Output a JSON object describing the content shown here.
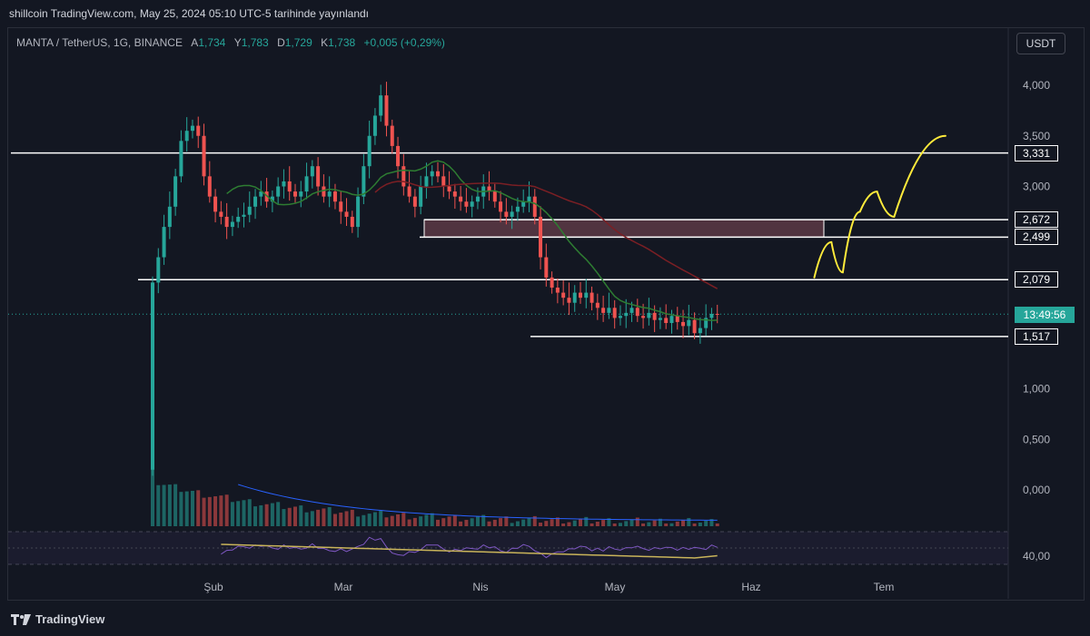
{
  "header": {
    "publish_line": "shillcoin TradingView.com, May 25, 2024 05:10 UTC-5 tarihinde yayınlandı"
  },
  "legend": {
    "symbol": "MANTA / TetherUS, 1G, BINANCE",
    "open_key": "A",
    "open": "1,734",
    "high_key": "Y",
    "high": "1,783",
    "low_key": "D",
    "low": "1,729",
    "close_key": "K",
    "close": "1,738",
    "change": "+0,005 (+0,29%)"
  },
  "currency_button": "USDT",
  "countdown": "13:49:56",
  "footer": {
    "brand": "TradingView"
  },
  "colors": {
    "background": "#131722",
    "up": "#26a69a",
    "down": "#ef5350",
    "ma_fast": "#2e7d32",
    "ma_slow": "#7b1f24",
    "level": "#ffffff",
    "projection": "#ffeb3b",
    "rsi": "#7e57c2",
    "rsi_ma": "#c9b45a",
    "zone": "#5d3a45"
  },
  "chart_data": {
    "type": "candlestick",
    "symbol": "MANTA/USDT",
    "timeframe": "1G",
    "y_ticks": [
      {
        "value": 4.0,
        "label": "4,000"
      },
      {
        "value": 3.5,
        "label": "3,500"
      },
      {
        "value": 3.0,
        "label": "3,000"
      },
      {
        "value": 1.0,
        "label": "1,000"
      },
      {
        "value": 0.5,
        "label": "0,500"
      },
      {
        "value": 0.0,
        "label": "0,000"
      }
    ],
    "x_ticks": [
      "Şub",
      "Mar",
      "Nis",
      "May",
      "Haz",
      "Tem"
    ],
    "levels": [
      {
        "value": 3.331,
        "label": "3,331"
      },
      {
        "value": 2.672,
        "label": "2,672"
      },
      {
        "value": 2.499,
        "label": "2,499"
      },
      {
        "value": 2.079,
        "label": "2,079"
      },
      {
        "value": 1.517,
        "label": "1,517"
      }
    ],
    "zone": {
      "from": 2.499,
      "to": 2.672
    },
    "close_series": [
      2.05,
      2.3,
      2.6,
      2.8,
      3.1,
      3.45,
      3.55,
      3.6,
      3.5,
      3.1,
      2.9,
      2.75,
      2.7,
      2.6,
      2.65,
      2.7,
      2.72,
      2.8,
      2.9,
      2.95,
      2.85,
      2.9,
      3.0,
      3.05,
      2.95,
      2.9,
      2.95,
      3.1,
      3.2,
      3.0,
      2.9,
      2.95,
      2.85,
      2.75,
      2.7,
      2.6,
      2.9,
      3.2,
      3.5,
      3.7,
      3.9,
      3.6,
      3.4,
      3.2,
      3.0,
      2.9,
      2.8,
      3.0,
      3.1,
      3.15,
      3.1,
      3.0,
      2.95,
      2.9,
      2.85,
      2.8,
      2.85,
      2.9,
      3.0,
      2.95,
      2.85,
      2.75,
      2.7,
      2.75,
      2.8,
      2.85,
      2.9,
      2.7,
      2.3,
      2.1,
      2.0,
      1.95,
      1.9,
      1.85,
      1.95,
      1.9,
      1.95,
      1.85,
      1.8,
      1.75,
      1.8,
      1.7,
      1.72,
      1.75,
      1.8,
      1.72,
      1.7,
      1.75,
      1.68,
      1.7,
      1.65,
      1.72,
      1.66,
      1.62,
      1.68,
      1.55,
      1.6,
      1.7,
      1.74,
      1.738
    ],
    "rsi": {
      "tick_label": "40,00"
    },
    "projection_path": [
      {
        "day": 116,
        "value": 2.1
      },
      {
        "day": 119,
        "value": 2.45
      },
      {
        "day": 121,
        "value": 2.15
      },
      {
        "day": 124,
        "value": 2.75
      },
      {
        "day": 127,
        "value": 2.95
      },
      {
        "day": 130,
        "value": 2.7
      },
      {
        "day": 139,
        "value": 3.5
      }
    ]
  }
}
